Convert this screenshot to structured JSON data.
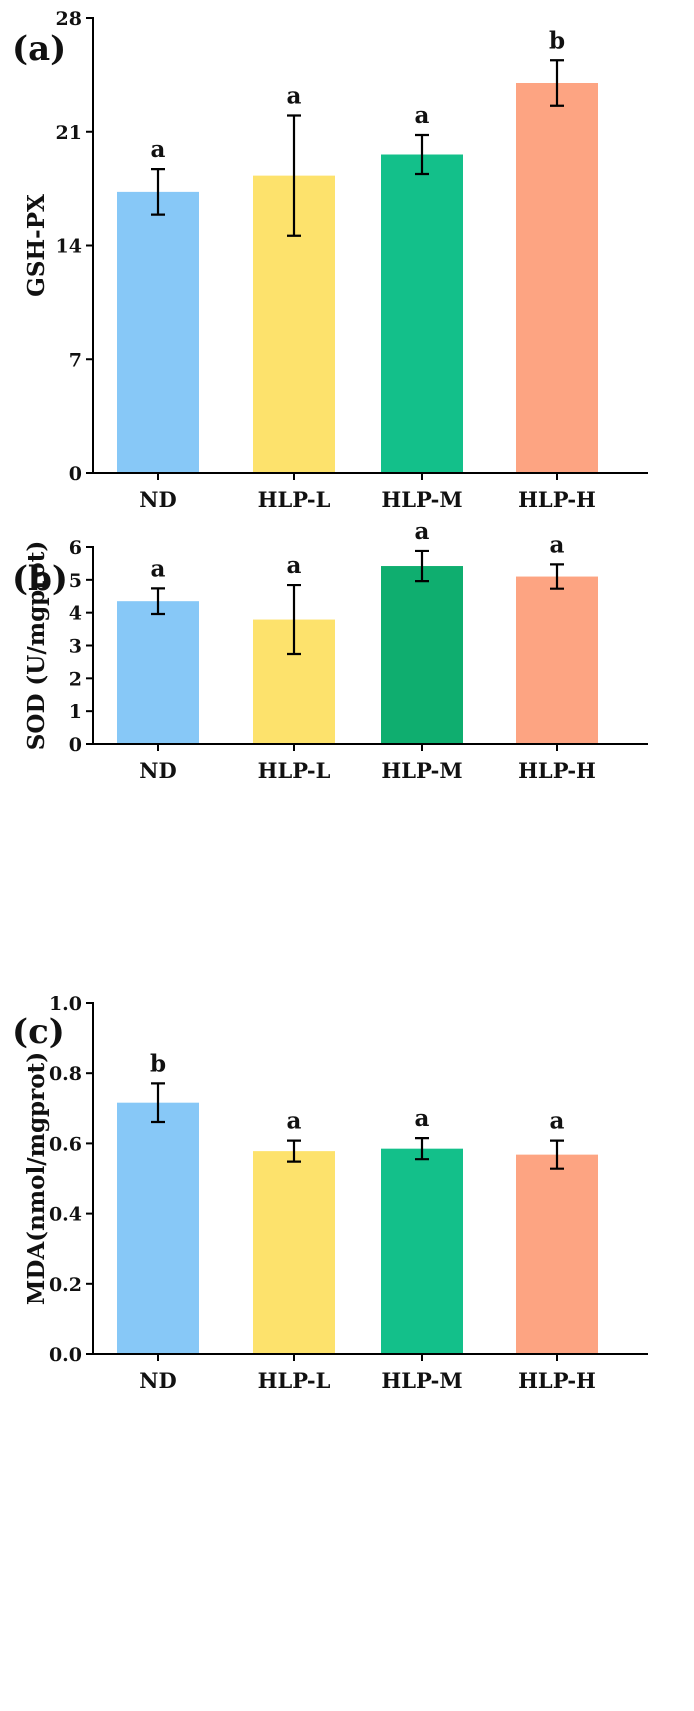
{
  "chart_data": [
    {
      "type": "bar",
      "panel_label": "(a)",
      "categories": [
        "ND",
        "HLP-L",
        "HLP-M",
        "HLP-H"
      ],
      "values": [
        17.3,
        18.3,
        19.6,
        24.0
      ],
      "errors": [
        1.4,
        3.7,
        1.2,
        1.4
      ],
      "significance": [
        "a",
        "a",
        "a",
        "b"
      ],
      "colors": [
        "#87c8f7",
        "#fde26c",
        "#13c08a",
        "#fda482"
      ],
      "ylabel": "GSH-PX",
      "yticks": [
        "0",
        "7",
        "14",
        "21",
        "28"
      ],
      "ylim": [
        0,
        28
      ],
      "grid": false
    },
    {
      "type": "bar",
      "panel_label": "(b)",
      "categories": [
        "ND",
        "HLP-L",
        "HLP-M",
        "HLP-H"
      ],
      "values": [
        4.35,
        3.79,
        5.42,
        5.1
      ],
      "errors": [
        0.39,
        1.05,
        0.46,
        0.37
      ],
      "significance": [
        "a",
        "a",
        "a",
        "a"
      ],
      "colors": [
        "#87c8f7",
        "#fde26c",
        "#0fae6f",
        "#fda482"
      ],
      "ylabel": "SOD (U/mgprot)",
      "yticks": [
        "0",
        "1",
        "2",
        "3",
        "4",
        "5",
        "6"
      ],
      "ylim": [
        0,
        6
      ],
      "grid": false
    },
    {
      "type": "bar",
      "panel_label": "(c)",
      "categories": [
        "ND",
        "HLP-L",
        "HLP-M",
        "HLP-H"
      ],
      "values": [
        0.716,
        0.578,
        0.585,
        0.568
      ],
      "errors": [
        0.055,
        0.03,
        0.03,
        0.04
      ],
      "significance": [
        "b",
        "a",
        "a",
        "a"
      ],
      "colors": [
        "#87c8f7",
        "#fde26c",
        "#13c08a",
        "#fda482"
      ],
      "ylabel": "MDA(nmol/mgprot)",
      "yticks": [
        "0.0",
        "0.2",
        "0.4",
        "0.6",
        "0.8",
        "1.0"
      ],
      "ylim": [
        0,
        1.0
      ],
      "grid": false
    }
  ]
}
